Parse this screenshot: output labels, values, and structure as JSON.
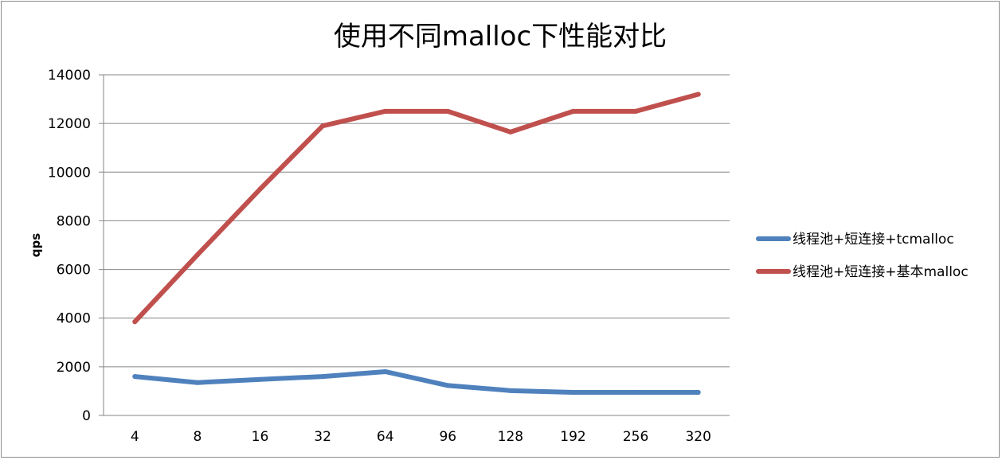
{
  "chart_data": {
    "type": "line",
    "title": "使用不同malloc下性能对比",
    "xlabel": "",
    "ylabel": "qps",
    "categories": [
      "4",
      "8",
      "16",
      "32",
      "64",
      "96",
      "128",
      "192",
      "256",
      "320"
    ],
    "ylim": [
      0,
      14000
    ],
    "yticks": [
      0,
      2000,
      4000,
      6000,
      8000,
      10000,
      12000,
      14000
    ],
    "grid": "horizontal",
    "legend_position": "right",
    "series": [
      {
        "name": "线程池+短连接+tcmalloc",
        "color": "#4f81bd",
        "values": [
          1600,
          1350,
          1480,
          1600,
          1800,
          1230,
          1020,
          950,
          950,
          950
        ]
      },
      {
        "name": "线程池+短连接+基本malloc",
        "color": "#c0504d",
        "values": [
          3850,
          6600,
          9300,
          11900,
          12500,
          12500,
          11650,
          12500,
          12500,
          13200
        ]
      }
    ]
  }
}
